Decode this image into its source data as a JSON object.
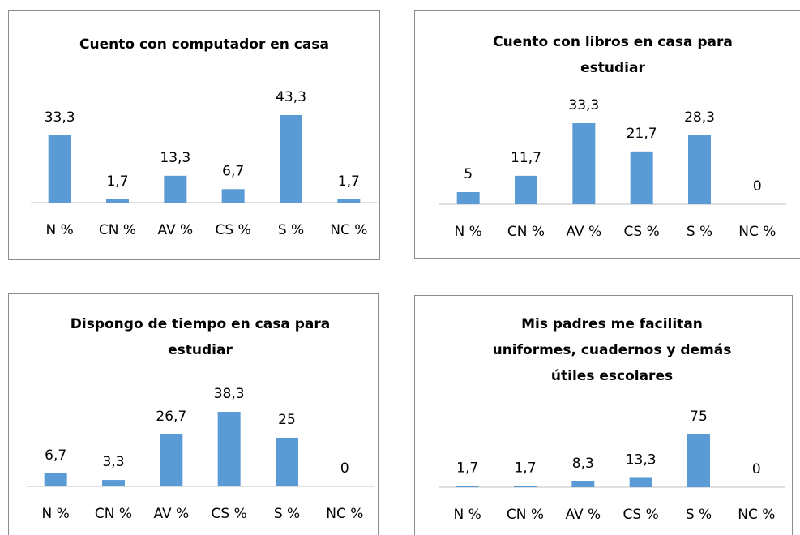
{
  "chart_data": [
    {
      "type": "bar",
      "title": [
        "Cuento con computador en casa"
      ],
      "categories": [
        "N %",
        "CN %",
        "AV %",
        "CS %",
        "S %",
        "NC %"
      ],
      "values": [
        33.3,
        1.7,
        13.3,
        6.7,
        43.3,
        1.7
      ],
      "value_labels": [
        "33,3",
        "1,7",
        "13,3",
        "6,7",
        "43,3",
        "1,7"
      ],
      "color": "#5b9bd5"
    },
    {
      "type": "bar",
      "title": [
        "Cuento con libros en casa para",
        "estudiar"
      ],
      "categories": [
        "N %",
        "CN %",
        "AV %",
        "CS %",
        "S %",
        "NC %"
      ],
      "values": [
        5,
        11.7,
        33.3,
        21.7,
        28.3,
        0
      ],
      "value_labels": [
        "5",
        "11,7",
        "33,3",
        "21,7",
        "28,3",
        "0"
      ],
      "color": "#5b9bd5"
    },
    {
      "type": "bar",
      "title": [
        "Dispongo de tiempo en casa para",
        "estudiar"
      ],
      "categories": [
        "N %",
        "CN %",
        "AV %",
        "CS %",
        "S %",
        "NC %"
      ],
      "values": [
        6.7,
        3.3,
        26.7,
        38.3,
        25,
        0
      ],
      "value_labels": [
        "6,7",
        "3,3",
        "26,7",
        "38,3",
        "25",
        "0"
      ],
      "color": "#5b9bd5"
    },
    {
      "type": "bar",
      "title": [
        "Mis padres me facilitan",
        "uniformes, cuadernos y demás",
        "útiles escolares"
      ],
      "categories": [
        "N %",
        "CN %",
        "AV %",
        "CS %",
        "S %",
        "NC %"
      ],
      "values": [
        1.7,
        1.7,
        8.3,
        13.3,
        75,
        0
      ],
      "value_labels": [
        "1,7",
        "1,7",
        "8,3",
        "13,3",
        "75",
        "0"
      ],
      "color": "#5b9bd5"
    }
  ]
}
